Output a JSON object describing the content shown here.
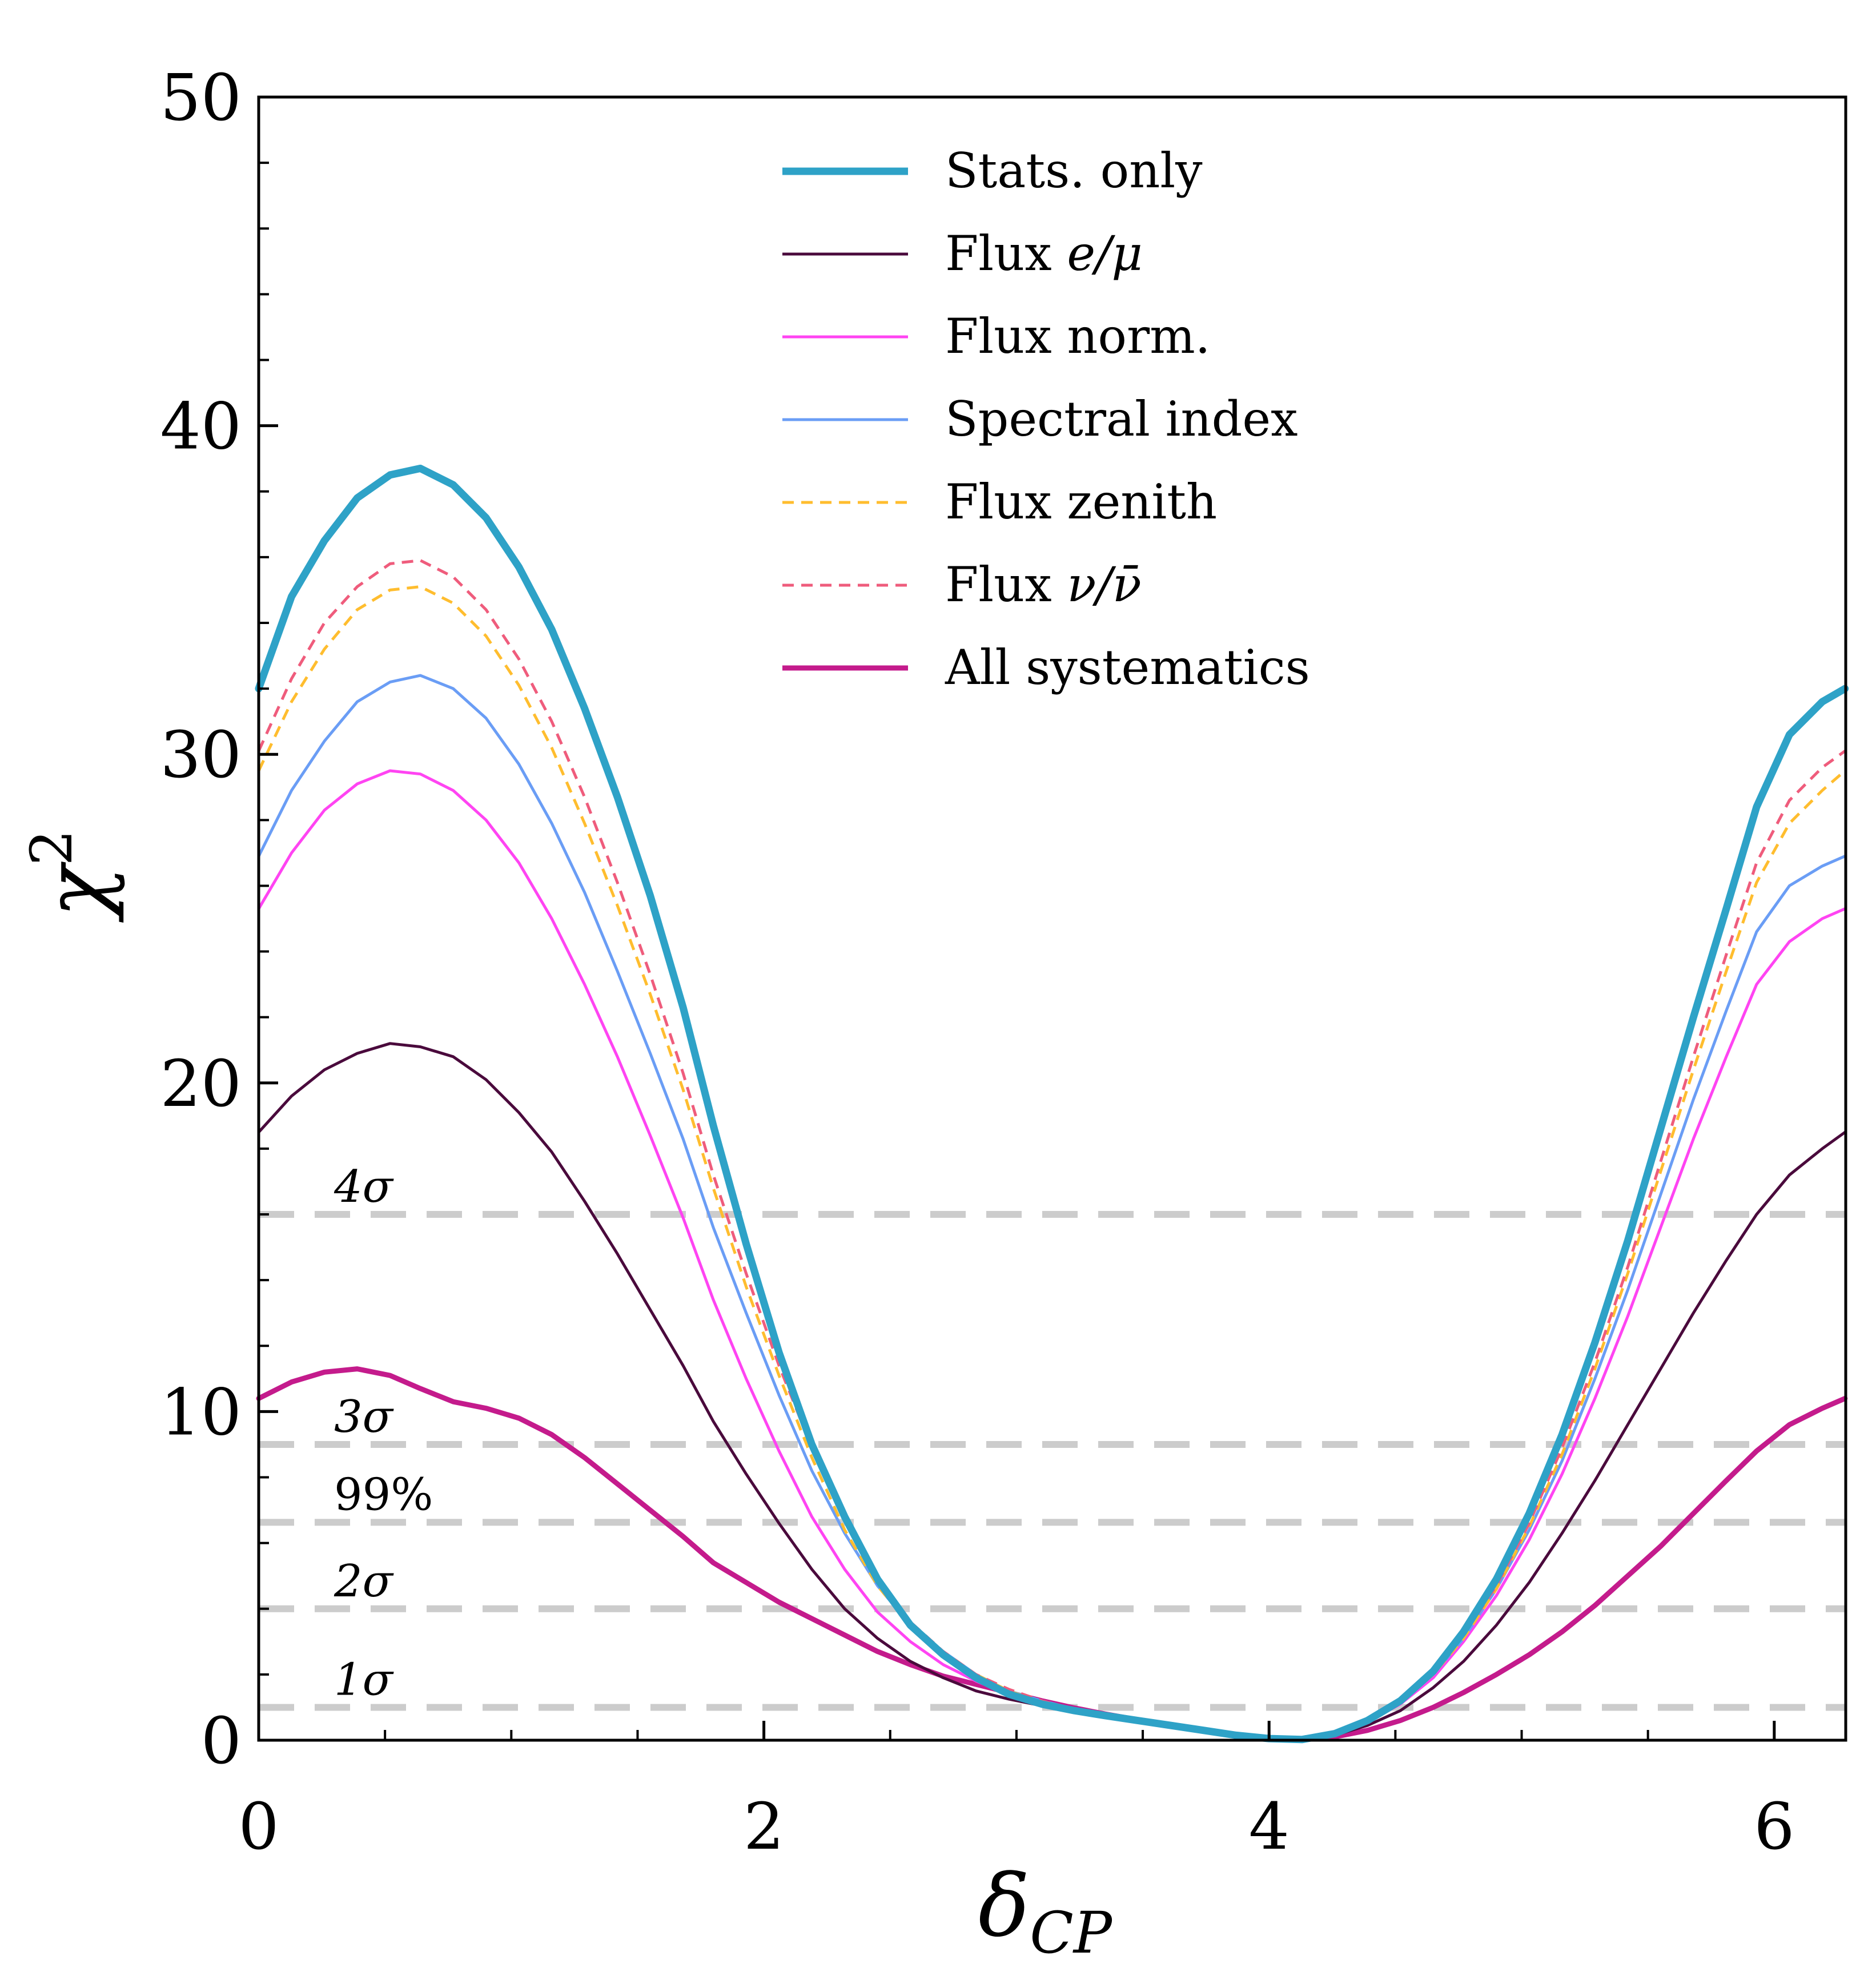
{
  "chart_data": {
    "type": "line",
    "title": "",
    "xlabel": "δ_CP",
    "xlabel_main": "δ",
    "xlabel_sub": "CP",
    "ylabel": "χ²",
    "ylabel_main": "χ",
    "ylabel_sup": "2",
    "xlim": [
      0,
      6.283
    ],
    "ylim": [
      0,
      50
    ],
    "xticks": [
      0,
      2,
      4,
      6
    ],
    "xtick_labels": [
      "0",
      "2",
      "4",
      "6"
    ],
    "yticks": [
      0,
      10,
      20,
      30,
      40,
      50
    ],
    "ytick_labels": [
      "0",
      "10",
      "20",
      "30",
      "40",
      "50"
    ],
    "x_minor_step": 0.5,
    "y_minor_step": 2,
    "grid": false,
    "legend_position": "top-center",
    "x": [
      0,
      0.13,
      0.26,
      0.39,
      0.52,
      0.64,
      0.77,
      0.9,
      1.03,
      1.16,
      1.29,
      1.42,
      1.55,
      1.68,
      1.8,
      1.93,
      2.06,
      2.19,
      2.32,
      2.45,
      2.58,
      2.71,
      2.84,
      2.97,
      3.1,
      3.23,
      3.35,
      3.48,
      3.61,
      3.74,
      3.87,
      4.0,
      4.13,
      4.26,
      4.39,
      4.52,
      4.65,
      4.77,
      4.9,
      5.03,
      5.16,
      5.29,
      5.42,
      5.55,
      5.68,
      5.81,
      5.93,
      6.06,
      6.19,
      6.28
    ],
    "series": [
      {
        "name": "Stats. only",
        "color": "#2ea2c7",
        "style": "solid",
        "weight": "thick",
        "values": [
          32.0,
          34.8,
          36.5,
          37.8,
          38.5,
          38.7,
          38.2,
          37.2,
          35.7,
          33.8,
          31.4,
          28.7,
          25.7,
          22.3,
          18.7,
          15.1,
          11.8,
          9.0,
          6.8,
          4.9,
          3.5,
          2.6,
          1.9,
          1.4,
          1.1,
          0.9,
          0.75,
          0.6,
          0.45,
          0.3,
          0.15,
          0.05,
          0.02,
          0.2,
          0.6,
          1.2,
          2.1,
          3.3,
          4.9,
          6.9,
          9.3,
          12.1,
          15.2,
          18.6,
          22.0,
          25.3,
          28.4,
          30.6,
          31.6,
          32.0
        ]
      },
      {
        "name": "Flux e/μ",
        "label_main": "Flux ",
        "label_math": "e/μ",
        "color": "#4a0a3c",
        "style": "solid",
        "weight": "thin",
        "values": [
          18.5,
          19.6,
          20.4,
          20.9,
          21.2,
          21.1,
          20.8,
          20.1,
          19.1,
          17.9,
          16.4,
          14.8,
          13.1,
          11.4,
          9.7,
          8.1,
          6.6,
          5.2,
          4.0,
          3.1,
          2.4,
          1.9,
          1.5,
          1.25,
          1.05,
          0.9,
          0.75,
          0.6,
          0.45,
          0.3,
          0.15,
          0.05,
          0.02,
          0.15,
          0.45,
          0.9,
          1.6,
          2.4,
          3.5,
          4.8,
          6.3,
          7.9,
          9.6,
          11.3,
          13.0,
          14.6,
          16.0,
          17.2,
          18.0,
          18.5
        ]
      },
      {
        "name": "Flux norm.",
        "color": "#ff44f2",
        "style": "solid",
        "weight": "thin",
        "values": [
          25.3,
          27.0,
          28.3,
          29.1,
          29.5,
          29.4,
          28.9,
          28.0,
          26.7,
          25.0,
          23.0,
          20.8,
          18.4,
          15.9,
          13.4,
          11.0,
          8.8,
          6.8,
          5.2,
          3.9,
          3.0,
          2.3,
          1.8,
          1.4,
          1.1,
          0.9,
          0.75,
          0.6,
          0.45,
          0.3,
          0.15,
          0.05,
          0.02,
          0.18,
          0.55,
          1.1,
          1.9,
          3.0,
          4.4,
          6.1,
          8.1,
          10.4,
          12.9,
          15.6,
          18.3,
          20.8,
          23.0,
          24.3,
          25.0,
          25.3
        ]
      },
      {
        "name": "Spectral index",
        "color": "#6a9df5",
        "style": "solid",
        "weight": "thin",
        "values": [
          26.9,
          28.9,
          30.4,
          31.6,
          32.2,
          32.4,
          32.0,
          31.1,
          29.7,
          27.9,
          25.8,
          23.4,
          20.9,
          18.3,
          15.6,
          13.0,
          10.5,
          8.2,
          6.3,
          4.7,
          3.5,
          2.7,
          2.0,
          1.5,
          1.2,
          0.95,
          0.8,
          0.62,
          0.47,
          0.32,
          0.16,
          0.05,
          0.02,
          0.19,
          0.58,
          1.15,
          2.0,
          3.1,
          4.6,
          6.4,
          8.5,
          11.0,
          13.7,
          16.6,
          19.5,
          22.2,
          24.6,
          26.0,
          26.6,
          26.9
        ]
      },
      {
        "name": "Flux zenith",
        "color": "#ffbd2e",
        "style": "dashed",
        "weight": "thin",
        "values": [
          29.5,
          31.6,
          33.2,
          34.4,
          35.0,
          35.1,
          34.6,
          33.6,
          32.1,
          30.2,
          27.9,
          25.4,
          22.7,
          19.8,
          16.8,
          13.8,
          11.1,
          8.6,
          6.4,
          4.7,
          3.5,
          2.6,
          2.0,
          1.5,
          1.15,
          0.93,
          0.78,
          0.6,
          0.46,
          0.31,
          0.16,
          0.05,
          0.02,
          0.19,
          0.58,
          1.15,
          2.0,
          3.1,
          4.6,
          6.5,
          8.7,
          11.3,
          14.2,
          17.3,
          20.4,
          23.4,
          26.1,
          27.9,
          28.9,
          29.5
        ]
      },
      {
        "name": "Flux ν/ν̄",
        "label_main": "Flux ",
        "label_math": "ν/ν̄",
        "color": "#ef5c7c",
        "style": "dashed",
        "weight": "thin",
        "values": [
          30.1,
          32.3,
          34.0,
          35.1,
          35.8,
          35.9,
          35.4,
          34.4,
          32.9,
          31.0,
          28.7,
          26.1,
          23.3,
          20.3,
          17.2,
          14.2,
          11.4,
          8.9,
          6.7,
          4.9,
          3.6,
          2.7,
          2.0,
          1.55,
          1.2,
          0.95,
          0.8,
          0.62,
          0.47,
          0.32,
          0.16,
          0.05,
          0.02,
          0.2,
          0.6,
          1.2,
          2.05,
          3.2,
          4.7,
          6.6,
          8.9,
          11.5,
          14.4,
          17.6,
          20.8,
          23.9,
          26.7,
          28.6,
          29.6,
          30.1
        ]
      },
      {
        "name": "All systematics",
        "color": "#c41b8c",
        "style": "solid",
        "weight": "medium",
        "values": [
          10.4,
          10.9,
          11.2,
          11.3,
          11.1,
          10.7,
          10.3,
          10.1,
          9.8,
          9.3,
          8.6,
          7.8,
          7.0,
          6.2,
          5.4,
          4.8,
          4.2,
          3.7,
          3.2,
          2.7,
          2.3,
          1.95,
          1.7,
          1.45,
          1.2,
          0.98,
          0.8,
          0.62,
          0.46,
          0.3,
          0.15,
          0.05,
          0.02,
          0.1,
          0.3,
          0.6,
          1.0,
          1.45,
          2.0,
          2.6,
          3.3,
          4.1,
          5.0,
          5.9,
          6.9,
          7.9,
          8.8,
          9.6,
          10.1,
          10.4
        ]
      }
    ],
    "reference_lines": [
      {
        "label": "1σ",
        "value": 1.0
      },
      {
        "label": "2σ",
        "value": 4.0
      },
      {
        "label": "99%",
        "value": 6.63
      },
      {
        "label": "3σ",
        "value": 9.0
      },
      {
        "label": "4σ",
        "value": 16.0
      }
    ],
    "reference_line_color": "#cccccc"
  }
}
